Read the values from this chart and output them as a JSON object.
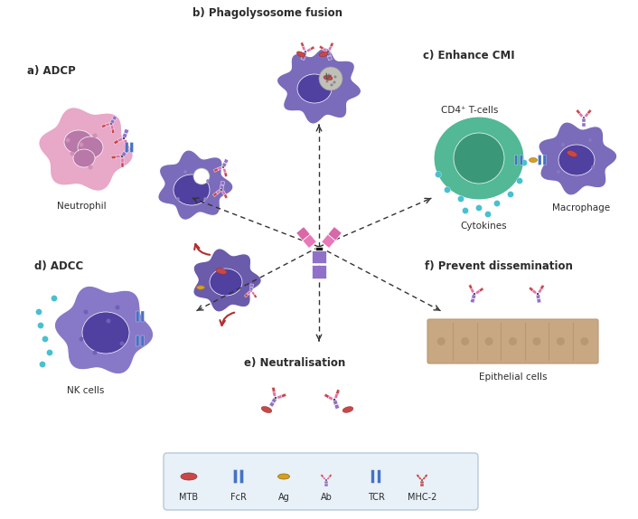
{
  "background_color": "#ffffff",
  "labels": {
    "a": "a) ADCP",
    "b": "b) Phagolysosome fusion",
    "c": "c) Enhance CMI",
    "d": "d) ADCC",
    "e": "e) Neutralisation",
    "f": "f) Prevent dissemination"
  },
  "sub_labels": {
    "neutrophil": "Neutrophil",
    "macrophage": "Macrophage",
    "cd4": "CD4⁺ T-cells",
    "cytokines": "Cytokines",
    "nk": "NK cells",
    "epithelial": "Epithelial cells"
  },
  "legend_items": [
    "MTB",
    "FcR",
    "Ag",
    "Ab",
    "TCR",
    "MHC-2"
  ],
  "legend_bg": "#e8f0f8",
  "colors": {
    "cell_purple": "#7B6BBB",
    "cell_purple2": "#6B5BAB",
    "cell_pink": "#E8A8C8",
    "cell_green": "#52B896",
    "cell_green_dark": "#3A9878",
    "nucleus_purple": "#5040A0",
    "nucleus_pink": "#B878A8",
    "antibody_pink": "#E878B0",
    "antibody_purple": "#9060C0",
    "antibody_dark": "#7050A8",
    "mtb_red": "#C84848",
    "ag_yellow": "#D4A020",
    "tcr_blue": "#4472c4",
    "hinge_black": "#1a1a1a",
    "arrow_dark": "#333333",
    "epithelial_tan": "#C8A882",
    "epithelial_tan2": "#B89870",
    "cytokine_teal": "#48C0D0",
    "red_arrow": "#B03030",
    "stem_purple": "#9070C8",
    "arm_pink": "#E070B0",
    "arm_pink2": "#D060A0"
  }
}
